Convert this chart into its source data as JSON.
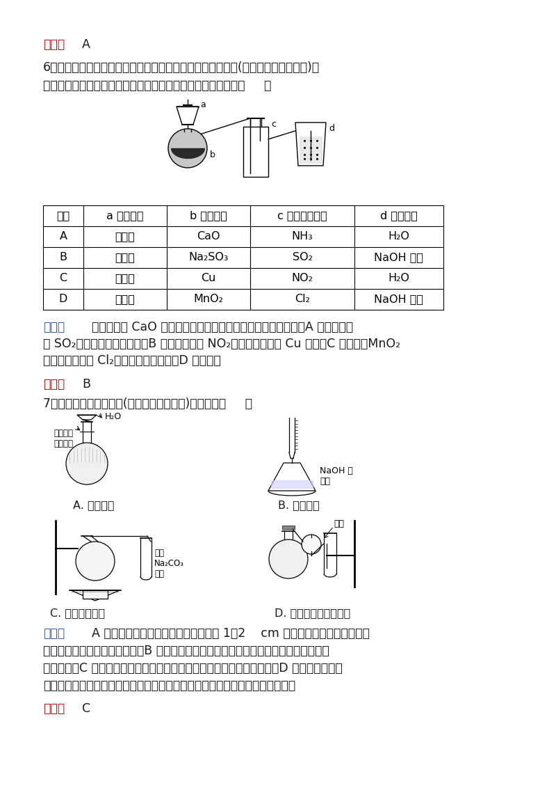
{
  "bg_color": "#ffffff",
  "text_color": "#1a1a1a",
  "red_color": "#cc0000",
  "blue_color": "#3355aa",
  "answer1_label": "答案：",
  "answer1_value": "A",
  "q6_line1": "6．实验室中某些气体的制取、收集及尾气处理装置如图所示(省略夹持和净化装置)。",
  "q6_line2": "仅用此装置和表中提供的物质完成相关实验，最合理的选择是（     ）",
  "table_headers": [
    "选项",
    "a 中的物质",
    "b 中的物质",
    "c 中收集的气体",
    "d 中的物质"
  ],
  "table_rows": [
    [
      "A",
      "浓氨水",
      "CaO",
      "NH₃",
      "H₂O"
    ],
    [
      "B",
      "浓硫酸",
      "Na₂SO₃",
      "SO₂",
      "NaOH 溶液"
    ],
    [
      "C",
      "稀硝酸",
      "Cu",
      "NO₂",
      "H₂O"
    ],
    [
      "D",
      "浓盐酸",
      "MnO₂",
      "Cl₂",
      "NaOH 溶液"
    ]
  ],
  "jiexi1_label": "解析：",
  "jiexi1_texts": [
    "    实验室利用 CaO 和浓氨水制取氨气，选择向下排空气法收集，A 项错误；收",
    "集 SO₂时选择向上排空气法，B 项正确；制取 NO₂时选择浓硝酸和 Cu 反应，C 项错误；MnO₂",
    "氧化浓盐酸制取 Cl₂需要加热才能发生，D 项错误。"
  ],
  "answer2_label": "答案：",
  "answer2_value": "B",
  "q7_line": "7．下列实验操作或装置(略去部分夹持仪器)正确的是（     ）",
  "img_A_label": "A. 配制溶液",
  "img_B_label": "B. 中和滴定",
  "img_C_label": "C. 制备乙酸乙酯",
  "img_D_label": "D. 制备收集干燥的氨气",
  "jiexi2_label": "解析：",
  "jiexi2_texts": [
    "    A 项，配制溶液时应在加水至距刻度线 1～2    cm 时，改用胶头滴管加水至液",
    "面与刻度线相切，该选项错误；B 项，中和滴定碱时，酸溶液应盛放在酸式滴定管中，该",
    "选项错误；C 项，符合实验室制取乙酸乙酯的装置示意图，该选项正确；D 项，利用向下排",
    "空气法收集氨气时，应将导管伸入试管底部，否则收集不到氨气，该选项错误。"
  ],
  "answer3_label": "答案：",
  "answer3_value": "C"
}
